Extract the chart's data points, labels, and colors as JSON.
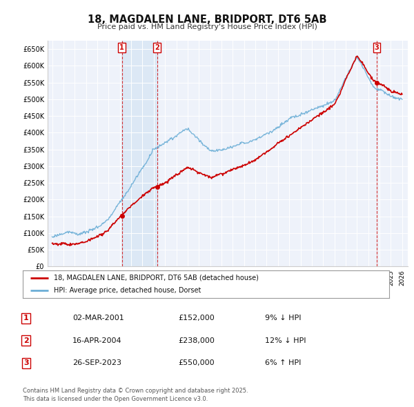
{
  "title": "18, MAGDALEN LANE, BRIDPORT, DT6 5AB",
  "subtitle": "Price paid vs. HM Land Registry's House Price Index (HPI)",
  "ylim": [
    0,
    675000
  ],
  "yticks": [
    0,
    50000,
    100000,
    150000,
    200000,
    250000,
    300000,
    350000,
    400000,
    450000,
    500000,
    550000,
    600000,
    650000
  ],
  "background_color": "#ffffff",
  "plot_bg_color": "#eef2fa",
  "grid_color": "#ffffff",
  "hpi_line_color": "#6baed6",
  "price_line_color": "#cc0000",
  "shade_color": "#dce8f5",
  "sales": [
    {
      "date": 2001.17,
      "price": 152000,
      "label": "1"
    },
    {
      "date": 2004.29,
      "price": 238000,
      "label": "2"
    },
    {
      "date": 2023.73,
      "price": 550000,
      "label": "3"
    }
  ],
  "legend_entries": [
    "18, MAGDALEN LANE, BRIDPORT, DT6 5AB (detached house)",
    "HPI: Average price, detached house, Dorset"
  ],
  "table_rows": [
    {
      "num": "1",
      "date": "02-MAR-2001",
      "price": "£152,000",
      "hpi": "9% ↓ HPI"
    },
    {
      "num": "2",
      "date": "16-APR-2004",
      "price": "£238,000",
      "hpi": "12% ↓ HPI"
    },
    {
      "num": "3",
      "date": "26-SEP-2023",
      "price": "£550,000",
      "hpi": "6% ↑ HPI"
    }
  ],
  "footnote": "Contains HM Land Registry data © Crown copyright and database right 2025.\nThis data is licensed under the Open Government Licence v3.0."
}
